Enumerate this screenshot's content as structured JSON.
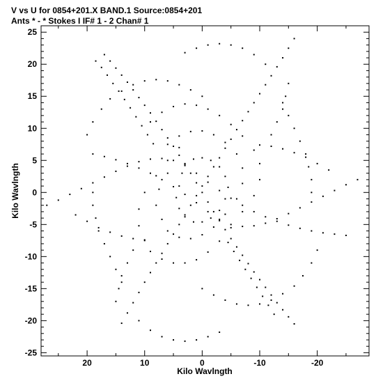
{
  "header": {
    "line1": "V vs U for 0854+201.X BAND.1   Source:0854+201",
    "line2": "Ants * - *    Stokes I  IF# 1 - 2   Chan# 1"
  },
  "chart_data": {
    "type": "scatter",
    "title": "V vs U for 0854+201.X BAND.1   Source:0854+201",
    "subtitle": "Ants * - *    Stokes I  IF# 1 - 2   Chan# 1",
    "xlabel": "Kilo Wavlngth",
    "ylabel": "Kilo Wavlngth",
    "xlim": [
      28,
      -29
    ],
    "ylim": [
      -25.5,
      26
    ],
    "x_reversed": true,
    "x_ticks": [
      20,
      10,
      0,
      -10,
      -20
    ],
    "x_tick_labels": [
      "20",
      "10",
      "0",
      "-10",
      "-20"
    ],
    "y_ticks": [
      25,
      20,
      15,
      10,
      5,
      0,
      -5,
      -10,
      -15,
      -20,
      -25
    ],
    "y_tick_labels": [
      "25",
      "20",
      "15",
      "10",
      "5",
      "0",
      "-5",
      "-10",
      "-15",
      "-20",
      "-25"
    ],
    "grid": false,
    "legend": "none",
    "point_color": "#000000",
    "series": [
      {
        "points": [
          [
            17,
            21.5
          ],
          [
            16,
            20.5
          ],
          [
            15,
            19.4
          ],
          [
            14,
            18.3
          ],
          [
            13,
            17.2
          ],
          [
            12,
            16
          ],
          [
            11,
            14.8
          ],
          [
            10,
            13.6
          ],
          [
            9,
            12.4
          ],
          [
            8,
            11.1
          ],
          [
            7,
            9.8
          ],
          [
            6,
            8.5
          ],
          [
            5,
            7.2
          ],
          [
            4,
            5.8
          ],
          [
            3,
            4.4
          ],
          [
            2,
            3
          ],
          [
            1,
            1.5
          ],
          [
            0,
            0
          ],
          [
            -1,
            -1.5
          ],
          [
            -2,
            -3
          ],
          [
            -3,
            -4.4
          ],
          [
            -4,
            -5.8
          ],
          [
            -5,
            -7.2
          ],
          [
            -6,
            -8.5
          ],
          [
            -7,
            -9.8
          ],
          [
            -8,
            -11.1
          ],
          [
            -9,
            -12.4
          ],
          [
            -10,
            -13.6
          ],
          [
            -11,
            -14.8
          ],
          [
            -12,
            -16
          ],
          [
            -13,
            -17.2
          ],
          [
            -14,
            -18.3
          ],
          [
            -15,
            -19.4
          ],
          [
            -16,
            -20.5
          ]
        ]
      },
      {
        "points": [
          [
            -16,
            24
          ],
          [
            -15,
            22.5
          ],
          [
            -14,
            21
          ],
          [
            -13,
            19.6
          ],
          [
            -12,
            18.2
          ],
          [
            -11,
            16.8
          ],
          [
            -10,
            15.4
          ],
          [
            -9,
            14
          ],
          [
            -8,
            12.6
          ],
          [
            -7,
            11.2
          ],
          [
            -6,
            9.8
          ],
          [
            -5,
            8.3
          ],
          [
            -4,
            6.9
          ],
          [
            -3,
            5.4
          ],
          [
            -2,
            4
          ],
          [
            -1,
            2.5
          ],
          [
            0,
            1
          ],
          [
            1,
            -0.5
          ],
          [
            2,
            -2
          ],
          [
            3,
            -3.5
          ],
          [
            4,
            -5
          ],
          [
            5,
            -6.5
          ],
          [
            6,
            -8
          ],
          [
            7,
            -9.5
          ],
          [
            8,
            -11
          ],
          [
            9,
            -12.5
          ],
          [
            10,
            -14
          ],
          [
            11,
            -15.6
          ],
          [
            12,
            -17.2
          ],
          [
            13,
            -18.8
          ],
          [
            14,
            -20.4
          ]
        ]
      },
      {
        "points": [
          [
            27,
            -2
          ],
          [
            25,
            -1.2
          ],
          [
            23,
            -0.3
          ],
          [
            21,
            0.6
          ],
          [
            19,
            1.5
          ],
          [
            17,
            2.4
          ],
          [
            15,
            3.3
          ],
          [
            13,
            4.1
          ],
          [
            11,
            4.8
          ],
          [
            9,
            5.2
          ],
          [
            7,
            5.3
          ],
          [
            5,
            5
          ],
          [
            3,
            4.2
          ],
          [
            1,
            3
          ],
          [
            -1,
            1.6
          ],
          [
            -3,
            0.3
          ],
          [
            -5,
            -0.9
          ],
          [
            -7,
            -2
          ],
          [
            -9,
            -3
          ],
          [
            -11,
            -3.8
          ],
          [
            -13,
            -4.5
          ],
          [
            -15,
            -5.1
          ],
          [
            -17,
            -5.6
          ],
          [
            -19,
            -6
          ],
          [
            -21,
            -6.3
          ],
          [
            -23,
            -6.5
          ],
          [
            -25,
            -6.7
          ]
        ]
      },
      {
        "points": [
          [
            -27,
            2
          ],
          [
            -25,
            1.2
          ],
          [
            -23,
            0.3
          ],
          [
            -21,
            -0.6
          ],
          [
            -19,
            -1.5
          ],
          [
            -17,
            -2.4
          ],
          [
            -15,
            -3.3
          ],
          [
            -13,
            -4.1
          ],
          [
            -11,
            -4.8
          ],
          [
            -9,
            -5.2
          ],
          [
            -7,
            -5.3
          ],
          [
            -5,
            -5
          ],
          [
            -3,
            -4.2
          ],
          [
            -1,
            -3
          ],
          [
            1,
            -1.6
          ],
          [
            3,
            -0.3
          ],
          [
            5,
            0.9
          ],
          [
            7,
            2
          ],
          [
            9,
            3
          ],
          [
            11,
            3.8
          ],
          [
            13,
            4.5
          ],
          [
            15,
            5.1
          ],
          [
            17,
            5.6
          ],
          [
            19,
            6
          ]
        ]
      },
      {
        "points": [
          [
            9,
            11
          ],
          [
            7,
            12.5
          ],
          [
            5,
            13.4
          ],
          [
            3,
            13.8
          ],
          [
            1,
            13.6
          ],
          [
            -1,
            13
          ],
          [
            -3,
            12
          ],
          [
            -5,
            10.6
          ],
          [
            -7,
            8.8
          ],
          [
            -9,
            6.6
          ],
          [
            -10,
            4.5
          ],
          [
            -10,
            2
          ],
          [
            -9,
            -0.5
          ],
          [
            -7,
            -3
          ],
          [
            -5,
            -5.5
          ],
          [
            -3,
            -7.6
          ],
          [
            -1,
            -9.3
          ],
          [
            1,
            -10.5
          ],
          [
            3,
            -11
          ],
          [
            5,
            -11
          ],
          [
            7,
            -10.4
          ],
          [
            9,
            -9.2
          ],
          [
            10,
            -7.5
          ],
          [
            11,
            -5.2
          ],
          [
            11,
            -2.6
          ],
          [
            10,
            0
          ],
          [
            8,
            2.6
          ],
          [
            6,
            5
          ],
          [
            4,
            7
          ]
        ]
      },
      {
        "points": [
          [
            6,
            7.5
          ],
          [
            4,
            8.8
          ],
          [
            2,
            9.5
          ],
          [
            0,
            9.6
          ],
          [
            -2,
            9
          ],
          [
            -4,
            7.8
          ],
          [
            -6,
            6
          ],
          [
            -7,
            3.8
          ],
          [
            -7,
            1.4
          ],
          [
            -6,
            -1
          ],
          [
            -4,
            -3.4
          ],
          [
            -2,
            -5.4
          ],
          [
            0,
            -6.6
          ],
          [
            2,
            -7.2
          ],
          [
            4,
            -7
          ],
          [
            6,
            -6
          ],
          [
            7,
            -4.2
          ],
          [
            8,
            -2
          ],
          [
            7.5,
            0.5
          ],
          [
            6,
            3
          ]
        ]
      },
      {
        "points": [
          [
            3,
            4.5
          ],
          [
            1.5,
            5.2
          ],
          [
            0,
            5.4
          ],
          [
            -1.5,
            5
          ],
          [
            -3,
            4
          ],
          [
            -4,
            2.5
          ],
          [
            -4.5,
            0.8
          ],
          [
            -4,
            -1
          ],
          [
            -3,
            -2.8
          ],
          [
            -1.5,
            -4
          ],
          [
            0,
            -4.6
          ],
          [
            1.5,
            -4.6
          ],
          [
            3,
            -3.8
          ],
          [
            4,
            -2.5
          ],
          [
            4.5,
            -0.8
          ],
          [
            4,
            1
          ],
          [
            3.5,
            3
          ]
        ]
      },
      {
        "points": [
          [
            20,
            9
          ],
          [
            19,
            11
          ],
          [
            17.5,
            13
          ],
          [
            16,
            14.6
          ],
          [
            14,
            15.8
          ],
          [
            12,
            16.8
          ],
          [
            10,
            17.4
          ],
          [
            8,
            17.6
          ],
          [
            6,
            17.4
          ],
          [
            4,
            16.8
          ],
          [
            2,
            16
          ],
          [
            0,
            15
          ]
        ]
      },
      {
        "points": [
          [
            -20,
            -9
          ],
          [
            -19,
            -11
          ],
          [
            -17.5,
            -13
          ],
          [
            -16,
            -14.6
          ],
          [
            -14,
            -15.8
          ],
          [
            -12,
            -16.8
          ],
          [
            -10,
            -17.4
          ],
          [
            -8,
            -17.6
          ],
          [
            -6,
            -17.4
          ],
          [
            -4,
            -16.8
          ],
          [
            -2,
            -16
          ],
          [
            0,
            -15
          ]
        ]
      },
      {
        "points": [
          [
            -14,
            14
          ],
          [
            -15,
            12
          ],
          [
            -16,
            10
          ],
          [
            -17,
            8
          ],
          [
            -18,
            6
          ],
          [
            -18.5,
            4
          ],
          [
            -19,
            2
          ],
          [
            -19,
            0
          ]
        ]
      },
      {
        "points": [
          [
            14,
            -14
          ],
          [
            15,
            -12
          ],
          [
            16,
            -10
          ],
          [
            17,
            -8
          ],
          [
            18,
            -6
          ],
          [
            18.5,
            -4
          ],
          [
            19,
            -2
          ],
          [
            19,
            0
          ]
        ]
      },
      {
        "points": [
          [
            11,
            -20
          ],
          [
            9,
            -21.5
          ],
          [
            7,
            -22.5
          ],
          [
            5,
            -23
          ],
          [
            3,
            -23.2
          ],
          [
            1,
            -23
          ],
          [
            -1,
            -22.5
          ],
          [
            -3,
            -21.8
          ]
        ]
      },
      {
        "points": [
          [
            -11,
            20
          ],
          [
            -9,
            21.5
          ],
          [
            -7,
            22.5
          ],
          [
            -5,
            23
          ],
          [
            -3,
            23.2
          ],
          [
            -1,
            23
          ],
          [
            1,
            22.5
          ],
          [
            3,
            21.8
          ]
        ]
      },
      {
        "points": [
          [
            18.5,
            20.5
          ],
          [
            17.5,
            19.5
          ],
          [
            16.5,
            18.3
          ],
          [
            15.5,
            17
          ],
          [
            14.5,
            15.8
          ],
          [
            13.5,
            14.5
          ],
          [
            12.5,
            13.2
          ],
          [
            11.5,
            11.8
          ],
          [
            10.5,
            10.4
          ],
          [
            9.5,
            9
          ],
          [
            8.5,
            7.6
          ]
        ]
      },
      {
        "points": [
          [
            -12.5,
            -19
          ],
          [
            -11.5,
            -17.6
          ],
          [
            -10.5,
            -16.2
          ],
          [
            -9.5,
            -14.8
          ],
          [
            -8.5,
            -13.4
          ],
          [
            -7.5,
            -12
          ],
          [
            -6.5,
            -10.6
          ],
          [
            -5.5,
            -9.2
          ],
          [
            -4.5,
            -7.8
          ]
        ]
      },
      {
        "points": [
          [
            12,
            -9
          ],
          [
            13,
            -11
          ],
          [
            14,
            -13
          ],
          [
            14.5,
            -15
          ],
          [
            15,
            -17
          ]
        ]
      },
      {
        "points": [
          [
            -12,
            9
          ],
          [
            -13,
            11
          ],
          [
            -14,
            13
          ],
          [
            -14.5,
            15
          ],
          [
            -15,
            17
          ]
        ]
      },
      {
        "points": [
          [
            22,
            -3.5
          ],
          [
            20,
            -4.5
          ],
          [
            18,
            -5.5
          ],
          [
            16,
            -6.2
          ],
          [
            14,
            -6.8
          ],
          [
            12,
            -7.2
          ],
          [
            10,
            -7.4
          ]
        ]
      },
      {
        "points": [
          [
            -22,
            3.5
          ],
          [
            -20,
            4.5
          ],
          [
            -18,
            5.5
          ],
          [
            -16,
            6.2
          ],
          [
            -14,
            6.8
          ],
          [
            -12,
            7.2
          ],
          [
            -10,
            7.4
          ]
        ]
      }
    ]
  }
}
